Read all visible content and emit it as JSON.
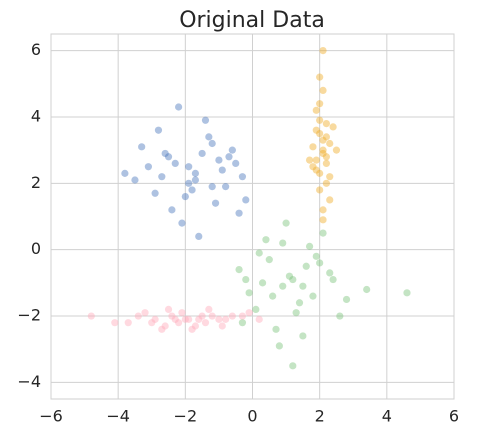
{
  "chart_data": {
    "type": "scatter",
    "title": "Original Data",
    "xlim": [
      -6,
      6
    ],
    "ylim": [
      -4.5,
      6.5
    ],
    "xticks": [
      {
        "value": -6,
        "label": "−6"
      },
      {
        "value": -4,
        "label": "−4"
      },
      {
        "value": -2,
        "label": "−2"
      },
      0,
      2,
      4,
      6
    ],
    "yticks": [
      {
        "value": -4,
        "label": "−4"
      },
      {
        "value": -2,
        "label": "−2"
      },
      0,
      2,
      4,
      6
    ],
    "grid": true,
    "series": [
      {
        "color": "#4c78bd",
        "x": [
          -1.7,
          -2.5,
          -0.8,
          -1.2,
          -3.1,
          -2.0,
          -1.5,
          -0.3,
          -2.8,
          -1.9,
          -1.1,
          -0.6,
          -2.3,
          -3.5,
          -1.4,
          -2.1,
          -0.9,
          -1.8,
          -2.6,
          -1.0,
          -0.2,
          -3.8,
          -1.6,
          -2.4,
          -1.3,
          -0.5,
          -2.9,
          -1.7,
          -2.2,
          -0.7,
          -3.3,
          -1.2,
          -1.9,
          -2.7,
          -0.4
        ],
        "y": [
          2.3,
          2.8,
          1.9,
          3.2,
          2.5,
          1.6,
          2.9,
          2.2,
          3.6,
          2.0,
          1.4,
          3.0,
          2.6,
          2.1,
          3.9,
          0.8,
          2.4,
          1.8,
          2.9,
          2.7,
          1.5,
          2.3,
          0.4,
          1.2,
          3.4,
          2.6,
          1.7,
          2.1,
          4.3,
          2.8,
          3.1,
          1.9,
          2.5,
          2.2,
          1.1
        ]
      },
      {
        "color": "#f0ac2a",
        "x": [
          2.1,
          2.0,
          2.2,
          1.9,
          2.3,
          2.1,
          2.0,
          1.8,
          2.2,
          2.4,
          2.1,
          1.9,
          2.0,
          2.3,
          2.1,
          2.2,
          1.7,
          2.0,
          2.1,
          2.5,
          1.9,
          2.2,
          2.0,
          2.1,
          1.8,
          2.3,
          2.1,
          2.0,
          2.2,
          1.9
        ],
        "y": [
          3.0,
          3.5,
          2.6,
          4.2,
          2.2,
          3.3,
          1.8,
          3.1,
          2.8,
          3.7,
          4.8,
          2.4,
          3.9,
          1.5,
          2.9,
          3.4,
          2.7,
          5.2,
          1.2,
          3.0,
          3.6,
          2.0,
          4.4,
          6.0,
          2.5,
          3.2,
          0.9,
          2.3,
          3.8,
          2.7
        ]
      },
      {
        "color": "#7cc47c",
        "x": [
          1.2,
          0.5,
          1.8,
          0.9,
          2.3,
          0.1,
          1.5,
          -0.4,
          1.0,
          2.8,
          0.7,
          1.9,
          0.3,
          1.3,
          2.1,
          -0.1,
          1.6,
          0.8,
          2.6,
          1.1,
          0.4,
          3.4,
          1.4,
          -0.3,
          2.0,
          0.6,
          1.7,
          1.2,
          0.9,
          2.4,
          4.6,
          -0.2,
          1.5,
          0.2
        ],
        "y": [
          -0.9,
          -0.3,
          -1.4,
          0.2,
          -0.7,
          -1.8,
          -1.1,
          -0.6,
          0.8,
          -1.5,
          -2.4,
          -0.2,
          -1.0,
          -1.9,
          0.5,
          -1.3,
          -0.5,
          -2.9,
          -2.0,
          -0.8,
          0.3,
          -1.2,
          -1.6,
          -2.2,
          -0.4,
          -1.4,
          0.1,
          -3.5,
          -1.1,
          -0.9,
          -1.3,
          -0.9,
          -2.6,
          -0.1
        ]
      },
      {
        "color": "#ffaabb",
        "x": [
          -2.0,
          -1.5,
          -2.6,
          -1.0,
          -3.2,
          -2.2,
          -0.6,
          -1.8,
          -2.9,
          -1.3,
          -3.7,
          -2.4,
          -0.9,
          -1.6,
          -2.1,
          -4.1,
          -0.3,
          -1.9,
          -2.7,
          -1.2,
          -3.0,
          -0.1,
          -2.3,
          -1.7,
          -4.8,
          -0.8,
          -2.5,
          -1.4,
          -3.4,
          0.2
        ],
        "y": [
          -2.1,
          -2.0,
          -2.3,
          -2.1,
          -1.9,
          -2.2,
          -2.0,
          -2.4,
          -2.1,
          -1.8,
          -2.2,
          -2.0,
          -2.3,
          -2.1,
          -1.9,
          -2.2,
          -2.0,
          -2.1,
          -2.4,
          -2.0,
          -2.2,
          -1.9,
          -2.1,
          -2.3,
          -2.0,
          -2.1,
          -1.8,
          -2.2,
          -2.0,
          -2.1
        ]
      }
    ]
  }
}
